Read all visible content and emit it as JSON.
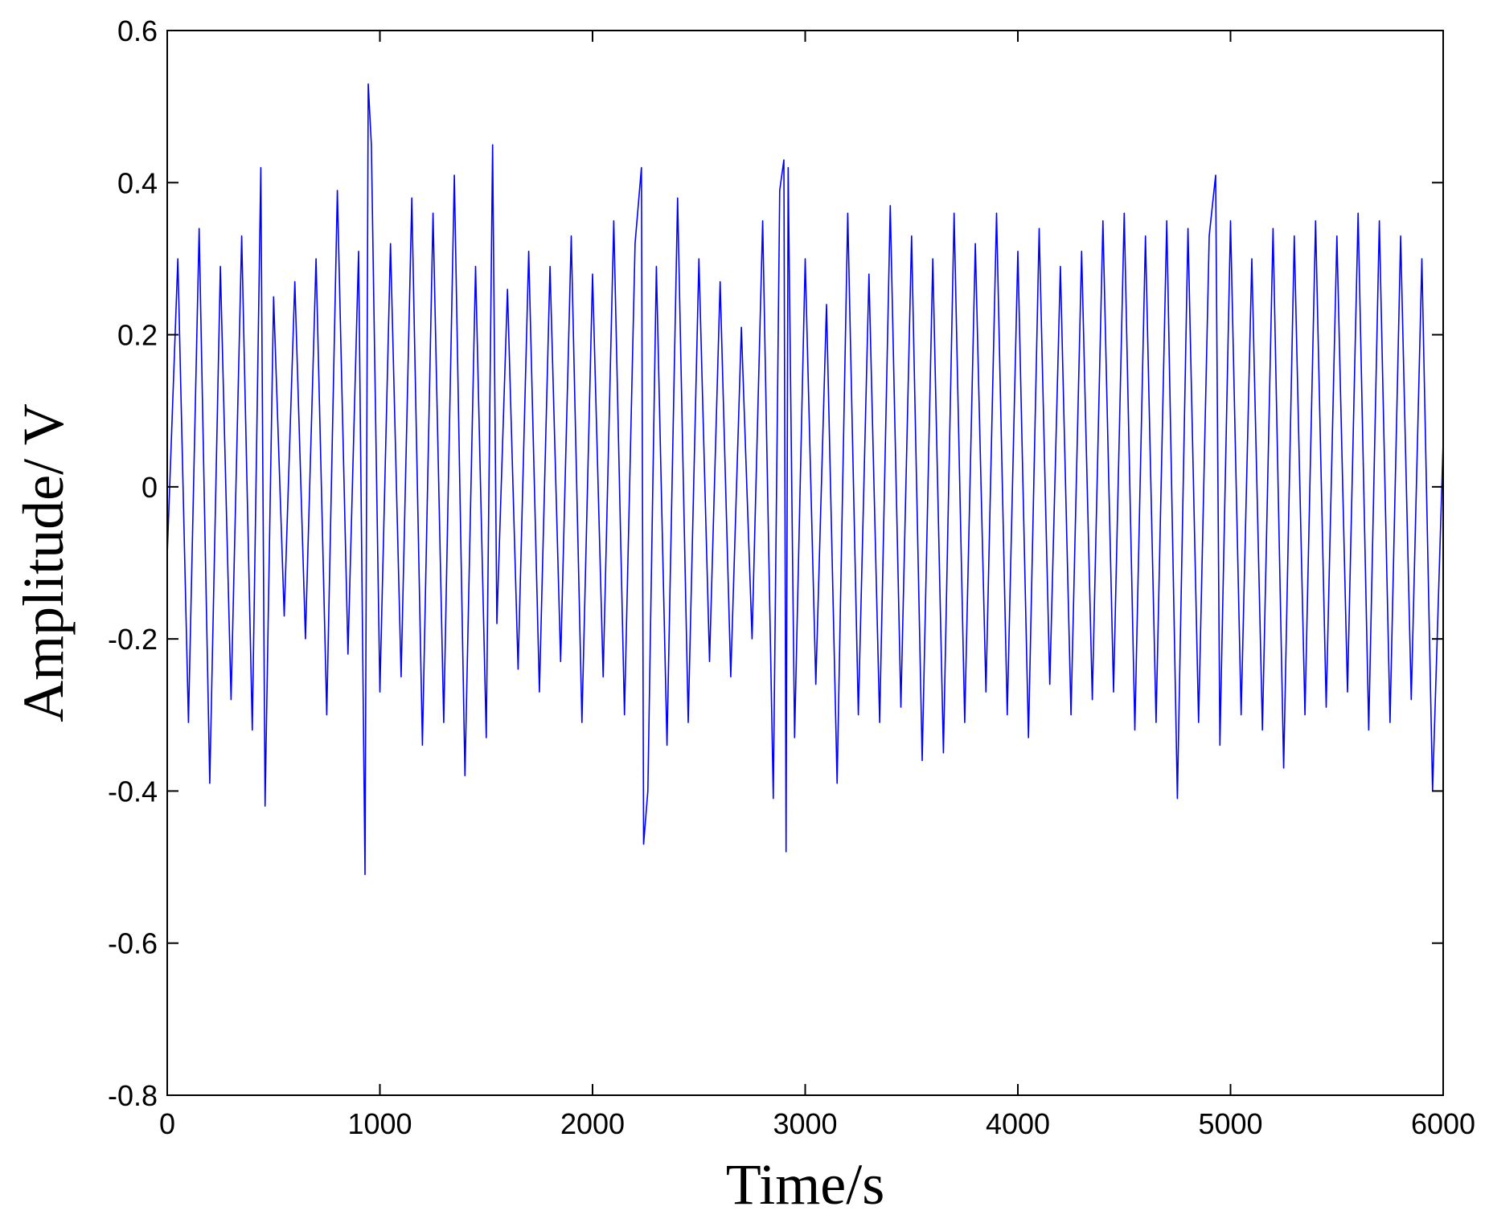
{
  "chart_data": {
    "type": "line",
    "title": "",
    "xlabel": "Time/s",
    "ylabel": "Amplitude/ V",
    "xlim": [
      0,
      6000
    ],
    "ylim": [
      -0.8,
      0.6
    ],
    "x_ticks": [
      0,
      1000,
      2000,
      3000,
      4000,
      5000,
      6000
    ],
    "x_tick_labels": [
      "0",
      "1000",
      "2000",
      "3000",
      "4000",
      "5000",
      "6000"
    ],
    "y_ticks": [
      -0.8,
      -0.6,
      -0.4,
      -0.2,
      0,
      0.2,
      0.4,
      0.6
    ],
    "y_tick_labels": [
      "-0.8",
      "-0.6",
      "-0.4",
      "-0.2",
      "0",
      "0.2",
      "0.4",
      "0.6"
    ],
    "grid": false,
    "line_color": "#0000ff",
    "axis_color": "#000000",
    "series": [
      {
        "x": [
          0,
          50,
          100,
          150,
          200,
          250,
          300,
          350,
          400,
          440,
          460,
          500,
          550,
          600,
          650,
          700,
          750,
          800,
          850,
          900,
          930,
          945,
          960,
          1000,
          1050,
          1100,
          1150,
          1200,
          1250,
          1300,
          1350,
          1400,
          1450,
          1500,
          1530,
          1550,
          1600,
          1650,
          1700,
          1750,
          1800,
          1850,
          1900,
          1950,
          2000,
          2050,
          2100,
          2150,
          2200,
          2230,
          2240,
          2260,
          2300,
          2350,
          2400,
          2450,
          2500,
          2550,
          2600,
          2650,
          2700,
          2750,
          2800,
          2850,
          2880,
          2900,
          2910,
          2920,
          2950,
          3000,
          3050,
          3100,
          3150,
          3200,
          3250,
          3300,
          3350,
          3400,
          3450,
          3500,
          3550,
          3600,
          3650,
          3700,
          3750,
          3800,
          3850,
          3900,
          3950,
          4000,
          4050,
          4100,
          4150,
          4200,
          4250,
          4300,
          4350,
          4400,
          4450,
          4500,
          4550,
          4600,
          4650,
          4700,
          4750,
          4800,
          4850,
          4900,
          4930,
          4950,
          5000,
          5050,
          5100,
          5150,
          5200,
          5250,
          5300,
          5350,
          5400,
          5450,
          5500,
          5550,
          5600,
          5650,
          5700,
          5750,
          5800,
          5850,
          5900,
          5950,
          6000
        ],
        "y": [
          -0.09,
          0.3,
          -0.31,
          0.34,
          -0.39,
          0.29,
          -0.28,
          0.33,
          -0.32,
          0.42,
          -0.42,
          0.25,
          -0.17,
          0.27,
          -0.2,
          0.3,
          -0.3,
          0.39,
          -0.22,
          0.31,
          -0.51,
          0.53,
          0.45,
          -0.27,
          0.32,
          -0.25,
          0.38,
          -0.34,
          0.36,
          -0.31,
          0.41,
          -0.38,
          0.29,
          -0.33,
          0.45,
          -0.18,
          0.26,
          -0.24,
          0.31,
          -0.27,
          0.29,
          -0.23,
          0.33,
          -0.31,
          0.28,
          -0.25,
          0.35,
          -0.3,
          0.32,
          0.42,
          -0.47,
          -0.4,
          0.29,
          -0.34,
          0.38,
          -0.31,
          0.3,
          -0.23,
          0.27,
          -0.25,
          0.21,
          -0.2,
          0.35,
          -0.41,
          0.39,
          0.43,
          -0.48,
          0.42,
          -0.33,
          0.3,
          -0.26,
          0.24,
          -0.39,
          0.36,
          -0.3,
          0.28,
          -0.31,
          0.37,
          -0.29,
          0.33,
          -0.36,
          0.3,
          -0.35,
          0.36,
          -0.31,
          0.32,
          -0.27,
          0.36,
          -0.3,
          0.31,
          -0.33,
          0.34,
          -0.26,
          0.29,
          -0.3,
          0.31,
          -0.28,
          0.35,
          -0.27,
          0.36,
          -0.32,
          0.33,
          -0.31,
          0.35,
          -0.41,
          0.34,
          -0.31,
          0.33,
          0.41,
          -0.34,
          0.35,
          -0.3,
          0.3,
          -0.32,
          0.34,
          -0.37,
          0.33,
          -0.3,
          0.35,
          -0.29,
          0.33,
          -0.27,
          0.36,
          -0.32,
          0.35,
          -0.31,
          0.33,
          -0.28,
          0.3,
          -0.4,
          0.06
        ]
      }
    ]
  }
}
